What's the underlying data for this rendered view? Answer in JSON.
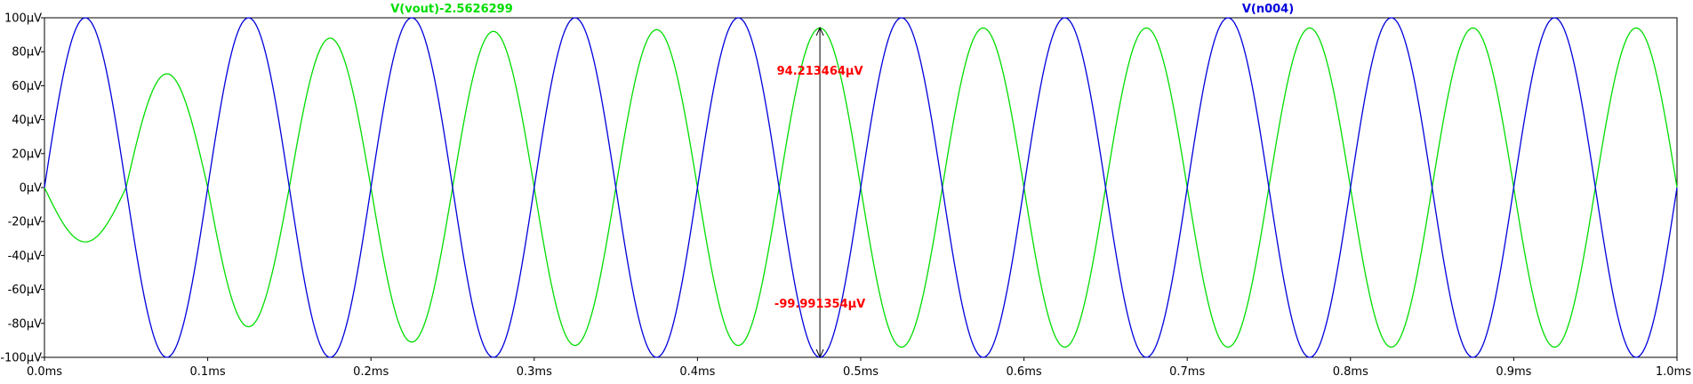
{
  "chart_data": {
    "type": "line",
    "x_unit": "ms",
    "y_unit": "µV",
    "xlim": [
      0.0,
      1.0
    ],
    "ylim": [
      -100,
      100
    ],
    "x_ticks": [
      "0.0ms",
      "0.1ms",
      "0.2ms",
      "0.3ms",
      "0.4ms",
      "0.5ms",
      "0.6ms",
      "0.7ms",
      "0.8ms",
      "0.9ms",
      "1.0ms"
    ],
    "y_ticks": [
      "100µV",
      "80µV",
      "60µV",
      "40µV",
      "20µV",
      "0µV",
      "-20µV",
      "-40µV",
      "-60µV",
      "-80µV",
      "-100µV"
    ],
    "series": [
      {
        "name": "V(vout)-2.5626299",
        "color": "#00dd00",
        "x": [
          0.0,
          0.025,
          0.05,
          0.075,
          0.1,
          0.125,
          0.15,
          0.175,
          0.2,
          0.225,
          0.25,
          0.275,
          0.3,
          0.325,
          0.35,
          0.375,
          0.4,
          0.425,
          0.45,
          0.475,
          0.5,
          0.525,
          0.55,
          0.575,
          0.6,
          0.625,
          0.65,
          0.675,
          0.7,
          0.725,
          0.75,
          0.775,
          0.8,
          0.825,
          0.85,
          0.875,
          0.9,
          0.925,
          0.95,
          0.975,
          1.0
        ],
        "y": [
          0,
          -32,
          0,
          67,
          0,
          -82,
          0,
          88,
          0,
          -91,
          0,
          92,
          0,
          -93,
          0,
          93,
          0,
          -93,
          0,
          94,
          0,
          -94,
          0,
          94,
          0,
          -94,
          0,
          94,
          0,
          -94,
          0,
          94,
          0,
          -94,
          0,
          94,
          0,
          -94,
          0,
          94,
          0
        ]
      },
      {
        "name": "V(n004)",
        "color": "#0000dd",
        "x": [
          0.0,
          0.025,
          0.05,
          0.075,
          0.1,
          0.125,
          0.15,
          0.175,
          0.2,
          0.225,
          0.25,
          0.275,
          0.3,
          0.325,
          0.35,
          0.375,
          0.4,
          0.425,
          0.45,
          0.475,
          0.5,
          0.525,
          0.55,
          0.575,
          0.6,
          0.625,
          0.65,
          0.675,
          0.7,
          0.725,
          0.75,
          0.775,
          0.8,
          0.825,
          0.85,
          0.875,
          0.9,
          0.925,
          0.95,
          0.975,
          1.0
        ],
        "y": [
          0,
          100,
          0,
          -100,
          0,
          100,
          0,
          -100,
          0,
          100,
          0,
          -100,
          0,
          100,
          0,
          -100,
          0,
          100,
          0,
          -100,
          0,
          100,
          0,
          -100,
          0,
          100,
          0,
          -100,
          0,
          100,
          0,
          -100,
          0,
          100,
          0,
          -100,
          0,
          100,
          0,
          -100,
          0
        ]
      }
    ],
    "annotations": [
      {
        "text": "94.213464µV",
        "x": 0.475,
        "y": 94.213464,
        "color": "#ff0000"
      },
      {
        "text": "-99.991354µV",
        "x": 0.475,
        "y": -99.991354,
        "color": "#ff0000"
      }
    ],
    "grid": false
  }
}
